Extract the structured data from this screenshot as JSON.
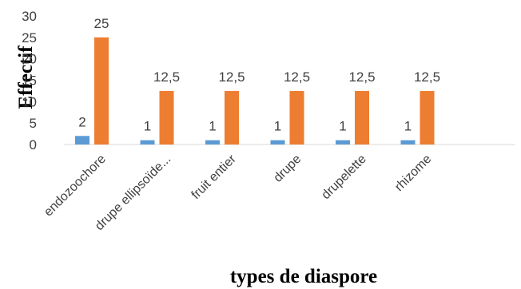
{
  "chart_data": {
    "type": "bar",
    "title": "",
    "xlabel": "types de diaspore",
    "ylabel": "Effectif",
    "ylim": [
      0,
      30
    ],
    "yticks": [
      0,
      5,
      10,
      15,
      20,
      25,
      30
    ],
    "grid": false,
    "legend": "none",
    "categories": [
      "endozoochore",
      "drupe ellipsoïde...",
      "fruit entier",
      "drupe",
      "drupelette",
      "rhizome"
    ],
    "series": [
      {
        "color": "#5B9BD5",
        "values": [
          2,
          1,
          1,
          1,
          1,
          1
        ],
        "labels": [
          "2",
          "1",
          "1",
          "1",
          "1",
          "1"
        ]
      },
      {
        "color": "#ED7D31",
        "values": [
          25,
          12.5,
          12.5,
          12.5,
          12.5,
          12.5
        ],
        "labels": [
          "25",
          "12,5",
          "12,5",
          "12,5",
          "12,5",
          "12,5"
        ]
      }
    ]
  }
}
